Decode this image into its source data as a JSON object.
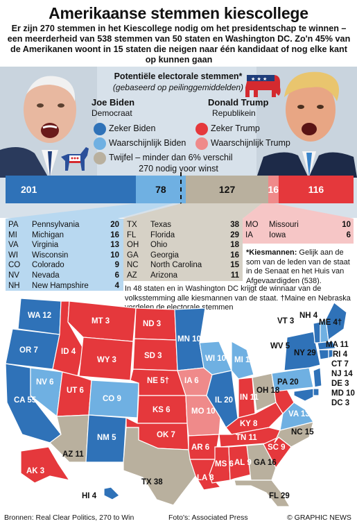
{
  "title": "Amerikaanse stemmen kiescollege",
  "subtitle": "Er zijn 270 stemmen in het Kiescollege nodig om het presidentschap te winnen – een meerderheid van 538 stemmen van 50 staten en Washington DC. Zo'n 45% van de Amerikanen woont in 15 staten die neigen naar één kandidaat of nog elke kant op kunnen gaan",
  "legend": {
    "header": "Potentiële electorale stemmen*",
    "sub": "(gebaseerd op peilinggemiddelden)",
    "biden_name": "Joe Biden",
    "biden_party": "Democraat",
    "trump_name": "Donald Trump",
    "trump_party": "Republikein",
    "items": {
      "zeker_biden": "Zeker Biden",
      "waarsch_biden": "Waarschijnlijk Biden",
      "zeker_trump": "Zeker Trump",
      "waarsch_trump": "Waarschijnlijk Trump",
      "twijfel": "Twijfel – minder dan 6% verschil"
    }
  },
  "colors": {
    "zeker_biden": "#2f72b8",
    "waarsch_biden": "#6fb0e2",
    "twijfel": "#b9b09e",
    "waarsch_trump": "#ef8a8a",
    "zeker_trump": "#e5383c",
    "panel": "#d7e1ea"
  },
  "bar": {
    "label": "270 nodig voor winst",
    "segments": [
      {
        "key": "zeker_biden",
        "value": 201,
        "label": "201"
      },
      {
        "key": "waarsch_biden",
        "value": 78,
        "label": "78"
      },
      {
        "key": "twijfel",
        "value": 127,
        "label": "127"
      },
      {
        "key": "waarsch_trump",
        "value": 16,
        "label": "16"
      },
      {
        "key": "zeker_trump",
        "value": 116,
        "label": "116"
      }
    ],
    "threshold": 270,
    "total": 538
  },
  "tables": {
    "biden_likely": [
      {
        "ab": "PA",
        "name": "Pennsylvania",
        "val": "20"
      },
      {
        "ab": "MI",
        "name": "Michigan",
        "val": "16"
      },
      {
        "ab": "VA",
        "name": "Virginia",
        "val": "13"
      },
      {
        "ab": "WI",
        "name": "Wisconsin",
        "val": "10"
      },
      {
        "ab": "CO",
        "name": "Colorado",
        "val": "9"
      },
      {
        "ab": "NV",
        "name": "Nevada",
        "val": "6"
      },
      {
        "ab": "NH",
        "name": "New Hampshire",
        "val": "4"
      }
    ],
    "tossup": [
      {
        "ab": "TX",
        "name": "Texas",
        "val": "38"
      },
      {
        "ab": "FL",
        "name": "Florida",
        "val": "29"
      },
      {
        "ab": "OH",
        "name": "Ohio",
        "val": "18"
      },
      {
        "ab": "GA",
        "name": "Georgia",
        "val": "16"
      },
      {
        "ab": "NC",
        "name": "North Carolina",
        "val": "15"
      },
      {
        "ab": "AZ",
        "name": "Arizona",
        "val": "11"
      }
    ],
    "trump_likely": [
      {
        "ab": "MO",
        "name": "Missouri",
        "val": "10"
      },
      {
        "ab": "IA",
        "name": "Iowa",
        "val": "6"
      }
    ]
  },
  "notes": {
    "kiesmannen_bold": "*Kiesmannen:",
    "kiesmannen": " Gelijk aan de som van de leden van de staat in de Senaat en het Huis van Afgevaardigden (538).",
    "states48": "In 48 staten en in Washington DC krijgt de winnaar van de volksstemming alle kiesmannen van de staat. †Maine en Nebraska verdelen de electorale stemmen"
  },
  "map_labels": {
    "WA": "WA 12",
    "OR": "OR 7",
    "CA": "CA 55",
    "NV": "NV 6",
    "ID": "ID 4",
    "MT": "MT 3",
    "WY": "WY 3",
    "UT": "UT 6",
    "AZ": "AZ 11",
    "CO": "CO 9",
    "NM": "NM 5",
    "ND": "ND 3",
    "SD": "SD 3",
    "NE": "NE 5†",
    "KS": "KS 6",
    "OK": "OK 7",
    "TX": "TX 38",
    "MN": "MN 10",
    "IA": "IA 6",
    "MO": "MO 10",
    "AR": "AR 6",
    "LA": "LA 8",
    "WI": "WI 10",
    "IL": "IL 20",
    "MI": "MI 16",
    "IN": "IN 11",
    "OH": "OH 18",
    "KY": "KY 8",
    "TN": "TN 11",
    "MS": "MS 6",
    "AL": "AL 9",
    "GA": "GA 16",
    "FL": "FL 29",
    "SC": "SC 9",
    "NC": "NC 15",
    "VA": "VA 13",
    "WV": "WV 5",
    "PA": "PA 20",
    "NY": "NY 29",
    "VT": "VT 3",
    "NH": "NH 4",
    "ME": "ME 4†",
    "MA": "MA 11",
    "RI": "RI 4",
    "CT": "CT 7",
    "NJ": "NJ 14",
    "DE": "DE 3",
    "MD": "MD 10",
    "DC": "DC 3",
    "AK": "AK 3",
    "HI": "HI 4"
  },
  "footer": {
    "sources": "Bronnen: Real Clear Politics, 270 to Win",
    "photos": "Foto's: Associated Press",
    "credit": "© GRAPHIC NEWS"
  }
}
